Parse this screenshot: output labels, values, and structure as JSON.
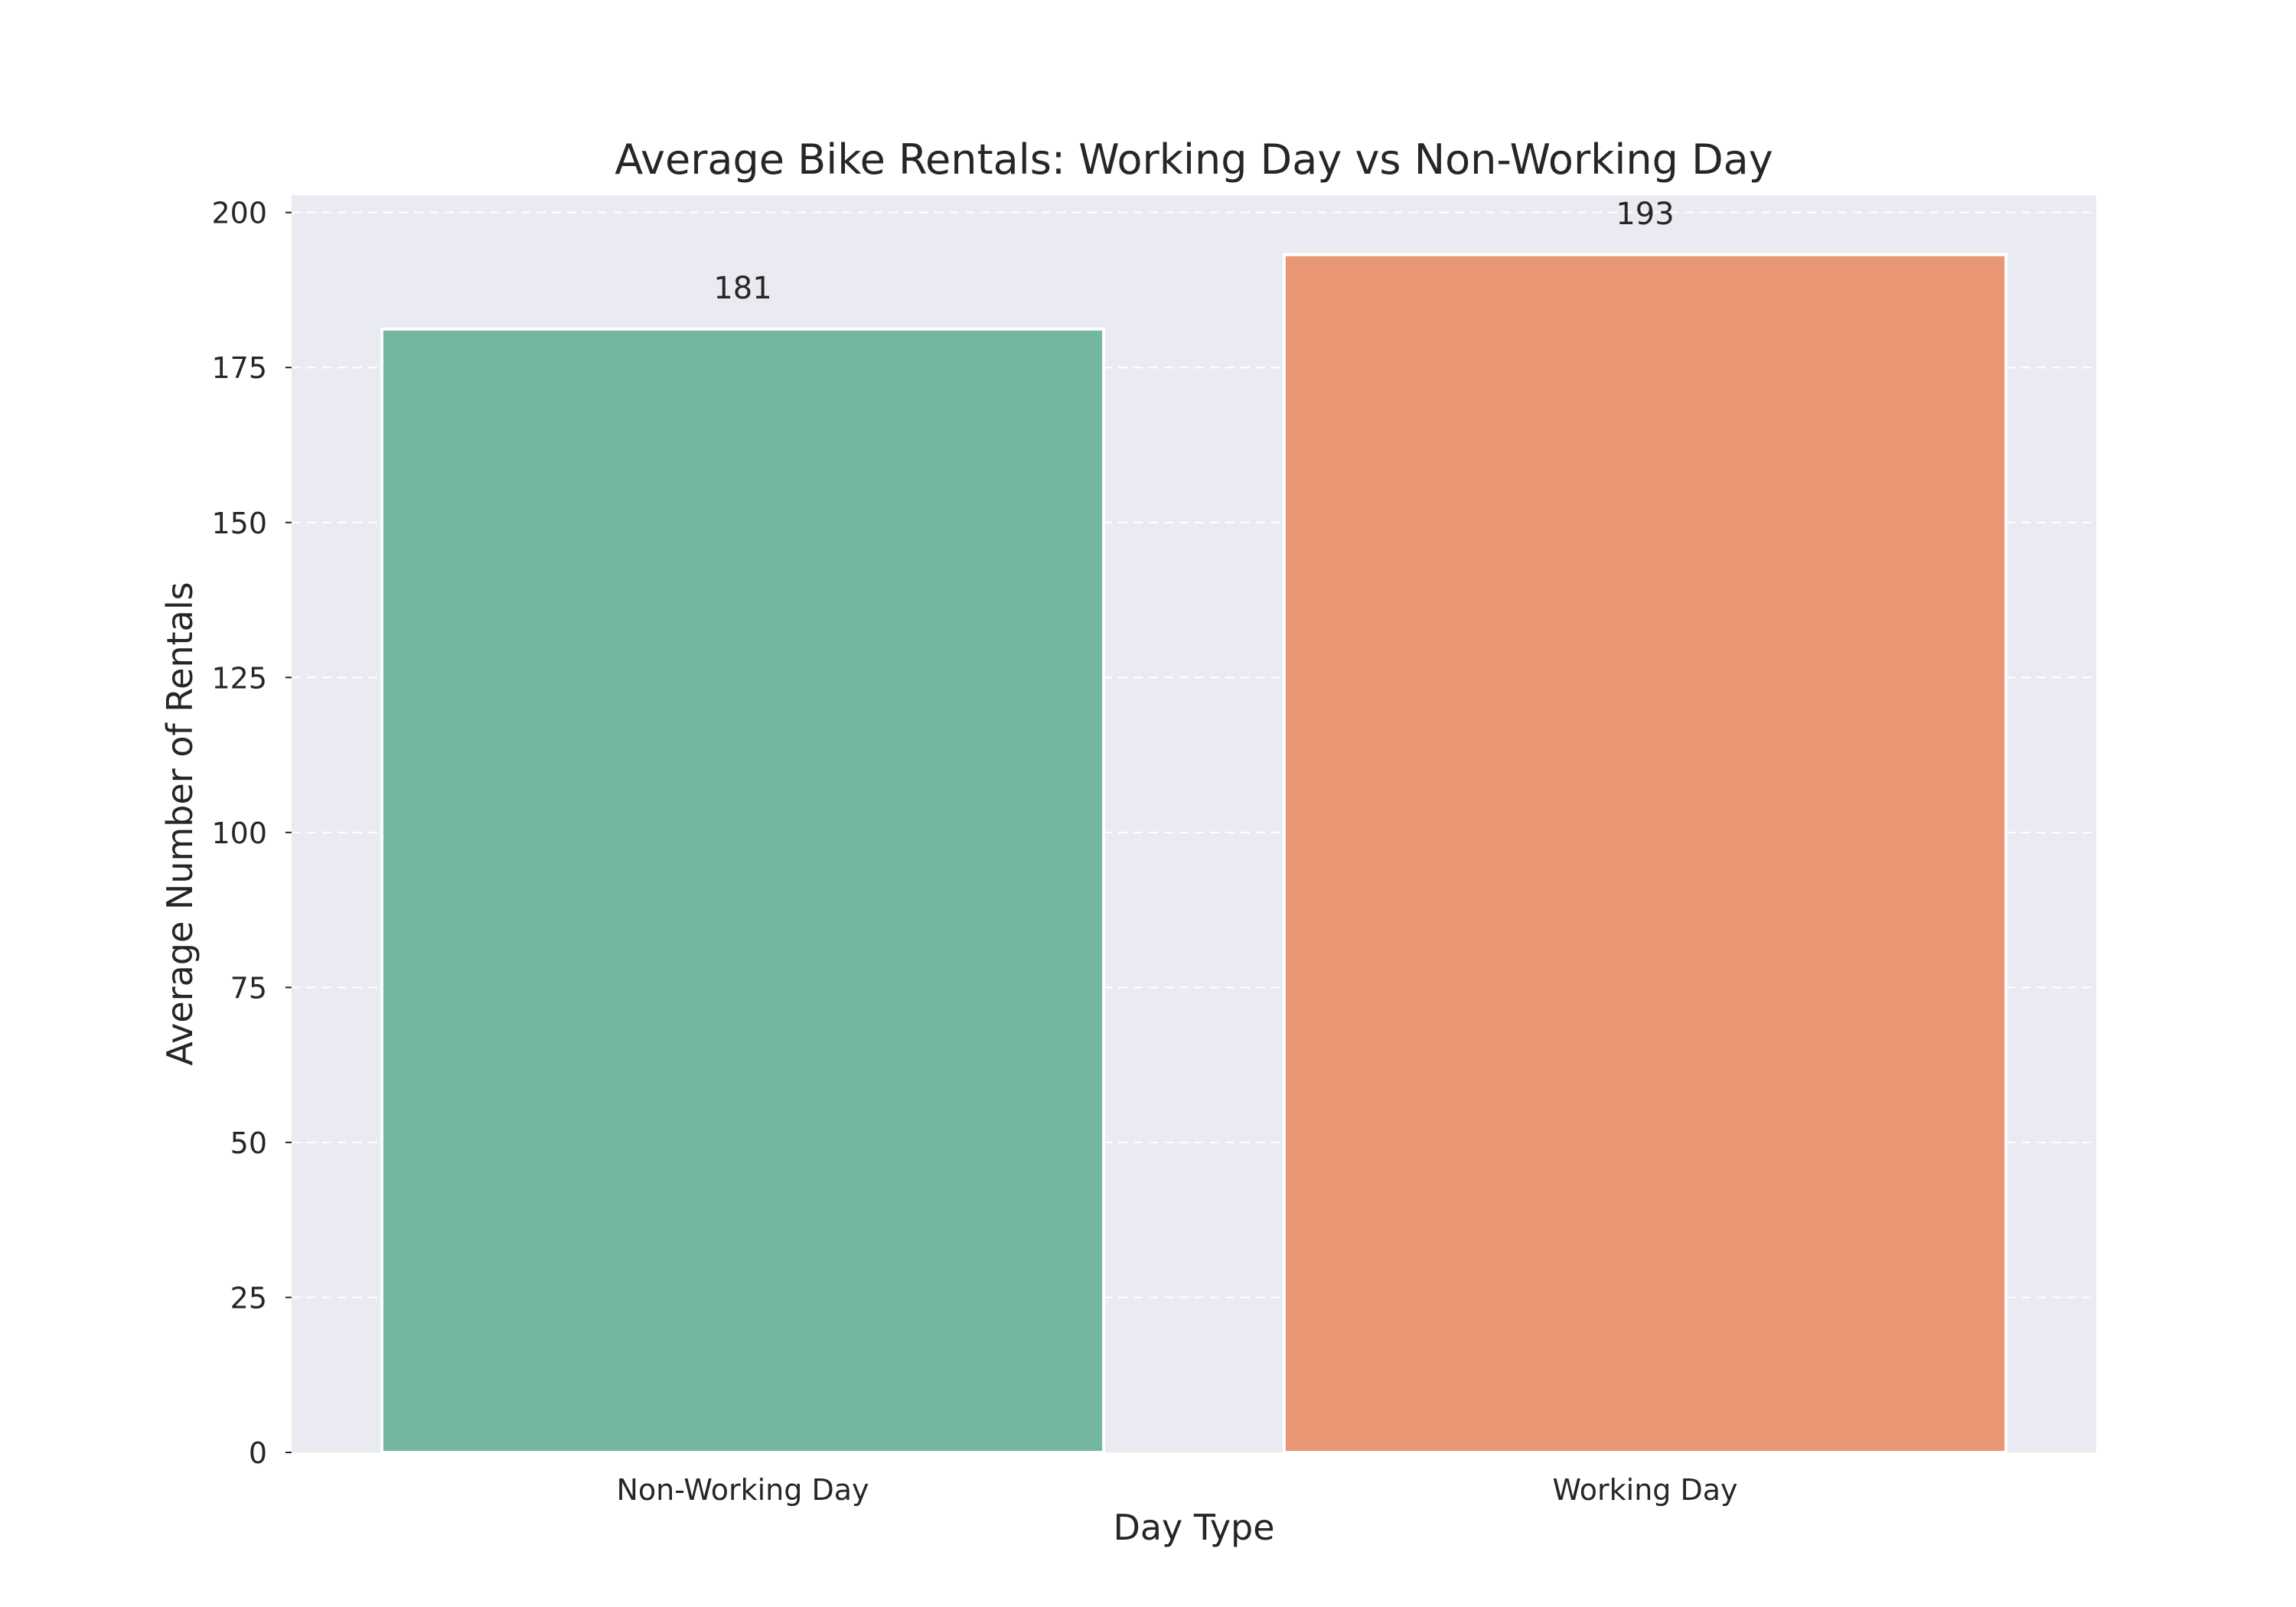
{
  "chart_data": {
    "type": "bar",
    "title": "Average Bike Rentals: Working Day vs Non-Working Day",
    "xlabel": "Day Type",
    "ylabel": "Average Number of Rentals",
    "categories": [
      "Non-Working Day",
      "Working Day"
    ],
    "values": [
      181.2,
      193.2
    ],
    "value_labels": [
      "181",
      "193"
    ],
    "bar_colors": [
      "#75b6a1",
      "#e99675"
    ],
    "ylim": [
      0,
      202.8
    ],
    "yticks": [
      0,
      25,
      50,
      75,
      100,
      125,
      150,
      175,
      200
    ],
    "ytick_labels": [
      "0",
      "25",
      "50",
      "75",
      "100",
      "125",
      "150",
      "175",
      "200"
    ],
    "grid": "y-dashed",
    "legend": "none",
    "plot_background": "#eaeaf2",
    "grid_color": "#ffffff",
    "bar_edge_color": "#ffffff"
  }
}
